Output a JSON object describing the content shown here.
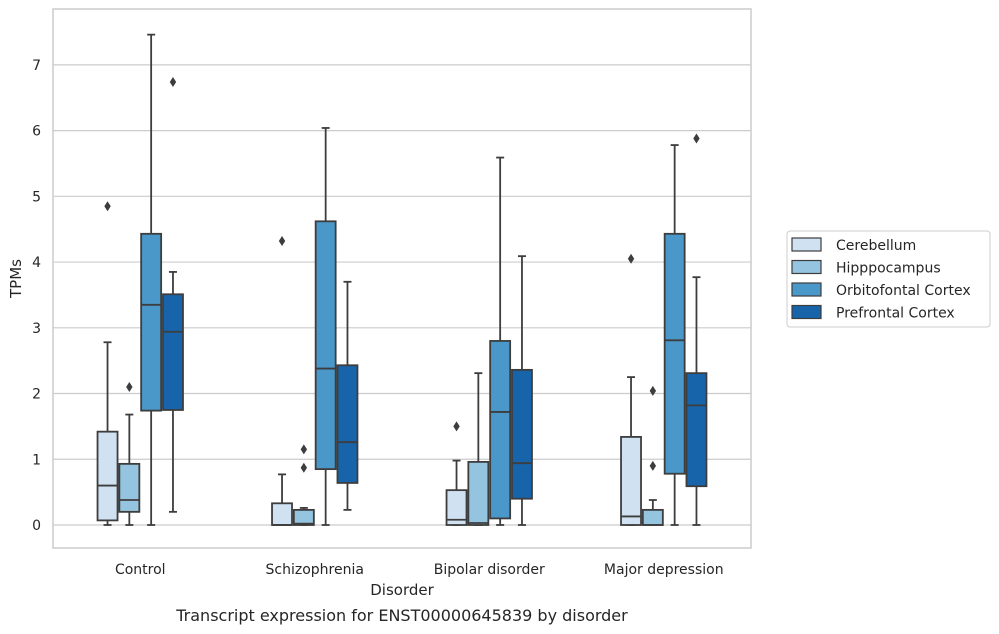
{
  "caption": "Transcript expression for ENST00000645839 by disorder",
  "chart_data": {
    "type": "box",
    "title": "",
    "xlabel": "Disorder",
    "ylabel": "TPMs",
    "ylim": [
      -0.35,
      7.85
    ],
    "yticks": [
      0,
      1,
      2,
      3,
      4,
      5,
      6,
      7
    ],
    "grid": "horizontal",
    "legend_position": "right",
    "categories": [
      "Control",
      "Schizophrenia",
      "Bipolar disorder",
      "Major depression"
    ],
    "series": [
      {
        "name": "Cerebellum",
        "color": "#d0e1f2",
        "boxes": [
          {
            "whisker_low": 0.0,
            "q1": 0.07,
            "median": 0.6,
            "q3": 1.42,
            "whisker_high": 2.78,
            "outliers": [
              4.85
            ]
          },
          {
            "whisker_low": 0.0,
            "q1": 0.0,
            "median": 0.0,
            "q3": 0.33,
            "whisker_high": 0.77,
            "outliers": [
              4.32
            ]
          },
          {
            "whisker_low": 0.0,
            "q1": 0.0,
            "median": 0.08,
            "q3": 0.53,
            "whisker_high": 0.98,
            "outliers": [
              1.5
            ]
          },
          {
            "whisker_low": 0.0,
            "q1": 0.0,
            "median": 0.13,
            "q3": 1.34,
            "whisker_high": 2.25,
            "outliers": [
              4.05
            ]
          }
        ]
      },
      {
        "name": "Hipppocampus",
        "color": "#94c4df",
        "boxes": [
          {
            "whisker_low": 0.0,
            "q1": 0.2,
            "median": 0.38,
            "q3": 0.93,
            "whisker_high": 1.68,
            "outliers": [
              2.1
            ]
          },
          {
            "whisker_low": 0.0,
            "q1": 0.0,
            "median": 0.02,
            "q3": 0.23,
            "whisker_high": 0.26,
            "outliers": [
              0.87,
              1.15
            ]
          },
          {
            "whisker_low": 0.0,
            "q1": 0.0,
            "median": 0.03,
            "q3": 0.96,
            "whisker_high": 2.31,
            "outliers": []
          },
          {
            "whisker_low": 0.0,
            "q1": 0.0,
            "median": 0.0,
            "q3": 0.23,
            "whisker_high": 0.38,
            "outliers": [
              0.9,
              2.04
            ]
          }
        ]
      },
      {
        "name": "Orbitofontal Cortex",
        "color": "#4a98c9",
        "boxes": [
          {
            "whisker_low": 0.0,
            "q1": 1.74,
            "median": 3.35,
            "q3": 4.43,
            "whisker_high": 7.46,
            "outliers": []
          },
          {
            "whisker_low": 0.0,
            "q1": 0.85,
            "median": 2.38,
            "q3": 4.62,
            "whisker_high": 6.04,
            "outliers": []
          },
          {
            "whisker_low": 0.0,
            "q1": 0.1,
            "median": 1.72,
            "q3": 2.8,
            "whisker_high": 5.59,
            "outliers": []
          },
          {
            "whisker_low": 0.0,
            "q1": 0.78,
            "median": 2.81,
            "q3": 4.43,
            "whisker_high": 5.78,
            "outliers": []
          }
        ]
      },
      {
        "name": "Prefrontal Cortex",
        "color": "#1764ab",
        "boxes": [
          {
            "whisker_low": 0.2,
            "q1": 1.75,
            "median": 2.94,
            "q3": 3.51,
            "whisker_high": 3.85,
            "outliers": [
              6.74
            ]
          },
          {
            "whisker_low": 0.23,
            "q1": 0.64,
            "median": 1.26,
            "q3": 2.43,
            "whisker_high": 3.7,
            "outliers": []
          },
          {
            "whisker_low": 0.0,
            "q1": 0.4,
            "median": 0.94,
            "q3": 2.36,
            "whisker_high": 4.09,
            "outliers": []
          },
          {
            "whisker_low": 0.0,
            "q1": 0.59,
            "median": 1.82,
            "q3": 2.31,
            "whisker_high": 3.77,
            "outliers": [
              5.88
            ]
          }
        ]
      }
    ]
  }
}
